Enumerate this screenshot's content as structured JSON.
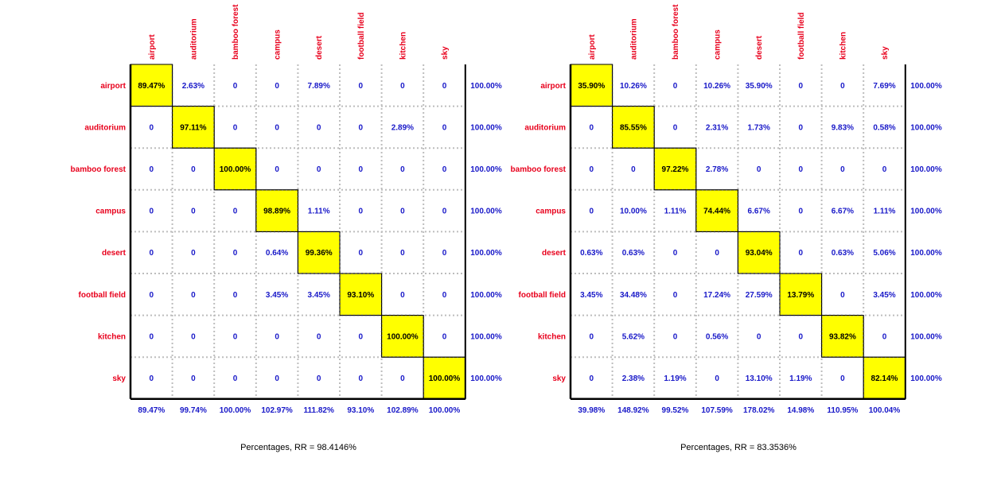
{
  "chart_data": [
    {
      "type": "heatmap",
      "caption": "Percentages, RR = 98.4146%",
      "row_labels": [
        "airport",
        "auditorium",
        "bamboo forest",
        "campus",
        "desert",
        "football field",
        "kitchen",
        "sky"
      ],
      "col_labels": [
        "airport",
        "auditorium",
        "bamboo forest",
        "campus",
        "desert",
        "football field",
        "kitchen",
        "sky"
      ],
      "values": [
        [
          "89.47%",
          "2.63%",
          "0",
          "0",
          "7.89%",
          "0",
          "0",
          "0"
        ],
        [
          "0",
          "97.11%",
          "0",
          "0",
          "0",
          "0",
          "2.89%",
          "0"
        ],
        [
          "0",
          "0",
          "100.00%",
          "0",
          "0",
          "0",
          "0",
          "0"
        ],
        [
          "0",
          "0",
          "0",
          "98.89%",
          "1.11%",
          "0",
          "0",
          "0"
        ],
        [
          "0",
          "0",
          "0",
          "0.64%",
          "99.36%",
          "0",
          "0",
          "0"
        ],
        [
          "0",
          "0",
          "0",
          "3.45%",
          "3.45%",
          "93.10%",
          "0",
          "0"
        ],
        [
          "0",
          "0",
          "0",
          "0",
          "0",
          "0",
          "100.00%",
          "0"
        ],
        [
          "0",
          "0",
          "0",
          "0",
          "0",
          "0",
          "0",
          "100.00%"
        ]
      ],
      "row_totals": [
        "100.00%",
        "100.00%",
        "100.00%",
        "100.00%",
        "100.00%",
        "100.00%",
        "100.00%",
        "100.00%"
      ],
      "col_totals": [
        "89.47%",
        "99.74%",
        "100.00%",
        "102.97%",
        "111.82%",
        "93.10%",
        "102.89%",
        "100.00%"
      ],
      "highlight": "diagonal",
      "highlight_color": "#ffff00",
      "grid": true
    },
    {
      "type": "heatmap",
      "caption": "Percentages, RR = 83.3536%",
      "row_labels": [
        "airport",
        "auditorium",
        "bamboo forest",
        "campus",
        "desert",
        "football field",
        "kitchen",
        "sky"
      ],
      "col_labels": [
        "airport",
        "auditorium",
        "bamboo forest",
        "campus",
        "desert",
        "football field",
        "kitchen",
        "sky"
      ],
      "values": [
        [
          "35.90%",
          "10.26%",
          "0",
          "10.26%",
          "35.90%",
          "0",
          "0",
          "7.69%"
        ],
        [
          "0",
          "85.55%",
          "0",
          "2.31%",
          "1.73%",
          "0",
          "9.83%",
          "0.58%"
        ],
        [
          "0",
          "0",
          "97.22%",
          "2.78%",
          "0",
          "0",
          "0",
          "0"
        ],
        [
          "0",
          "10.00%",
          "1.11%",
          "74.44%",
          "6.67%",
          "0",
          "6.67%",
          "1.11%"
        ],
        [
          "0.63%",
          "0.63%",
          "0",
          "0",
          "93.04%",
          "0",
          "0.63%",
          "5.06%"
        ],
        [
          "3.45%",
          "34.48%",
          "0",
          "17.24%",
          "27.59%",
          "13.79%",
          "0",
          "3.45%"
        ],
        [
          "0",
          "5.62%",
          "0",
          "0.56%",
          "0",
          "0",
          "93.82%",
          "0"
        ],
        [
          "0",
          "2.38%",
          "1.19%",
          "0",
          "13.10%",
          "1.19%",
          "0",
          "82.14%"
        ]
      ],
      "row_totals": [
        "100.00%",
        "100.00%",
        "100.00%",
        "100.00%",
        "100.00%",
        "100.00%",
        "100.00%",
        "100.00%"
      ],
      "col_totals": [
        "39.98%",
        "148.92%",
        "99.52%",
        "107.59%",
        "178.02%",
        "14.98%",
        "110.95%",
        "100.04%"
      ],
      "highlight": "diagonal",
      "highlight_color": "#ffff00",
      "grid": true
    }
  ]
}
